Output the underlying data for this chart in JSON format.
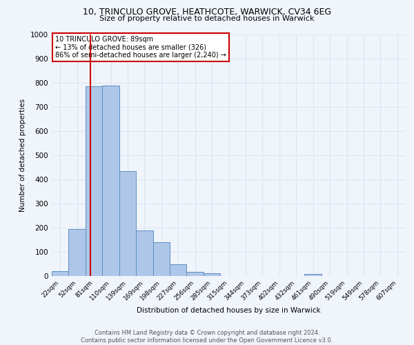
{
  "title1": "10, TRINCULO GROVE, HEATHCOTE, WARWICK, CV34 6EG",
  "title2": "Size of property relative to detached houses in Warwick",
  "xlabel": "Distribution of detached houses by size in Warwick",
  "ylabel": "Number of detached properties",
  "bin_labels": [
    "22sqm",
    "52sqm",
    "81sqm",
    "110sqm",
    "139sqm",
    "169sqm",
    "198sqm",
    "227sqm",
    "256sqm",
    "285sqm",
    "315sqm",
    "344sqm",
    "373sqm",
    "402sqm",
    "432sqm",
    "461sqm",
    "490sqm",
    "519sqm",
    "549sqm",
    "578sqm",
    "607sqm"
  ],
  "bar_heights": [
    20,
    195,
    785,
    790,
    435,
    190,
    140,
    48,
    18,
    12,
    0,
    0,
    0,
    0,
    0,
    10,
    0,
    0,
    0,
    0,
    0
  ],
  "bar_color": "#aec6e8",
  "bar_edge_color": "#5a8fc2",
  "grid_color": "#dce6f1",
  "vline_color": "#cc0000",
  "annotation_text": "10 TRINCULO GROVE: 89sqm\n← 13% of detached houses are smaller (326)\n86% of semi-detached houses are larger (2,240) →",
  "annotation_box_color": "#ffffff",
  "annotation_box_edge": "#cc0000",
  "ylim": [
    0,
    1000
  ],
  "yticks": [
    0,
    100,
    200,
    300,
    400,
    500,
    600,
    700,
    800,
    900,
    1000
  ],
  "footer_line1": "Contains HM Land Registry data © Crown copyright and database right 2024.",
  "footer_line2": "Contains public sector information licensed under the Open Government Licence v3.0.",
  "bg_color": "#f0f4fb"
}
